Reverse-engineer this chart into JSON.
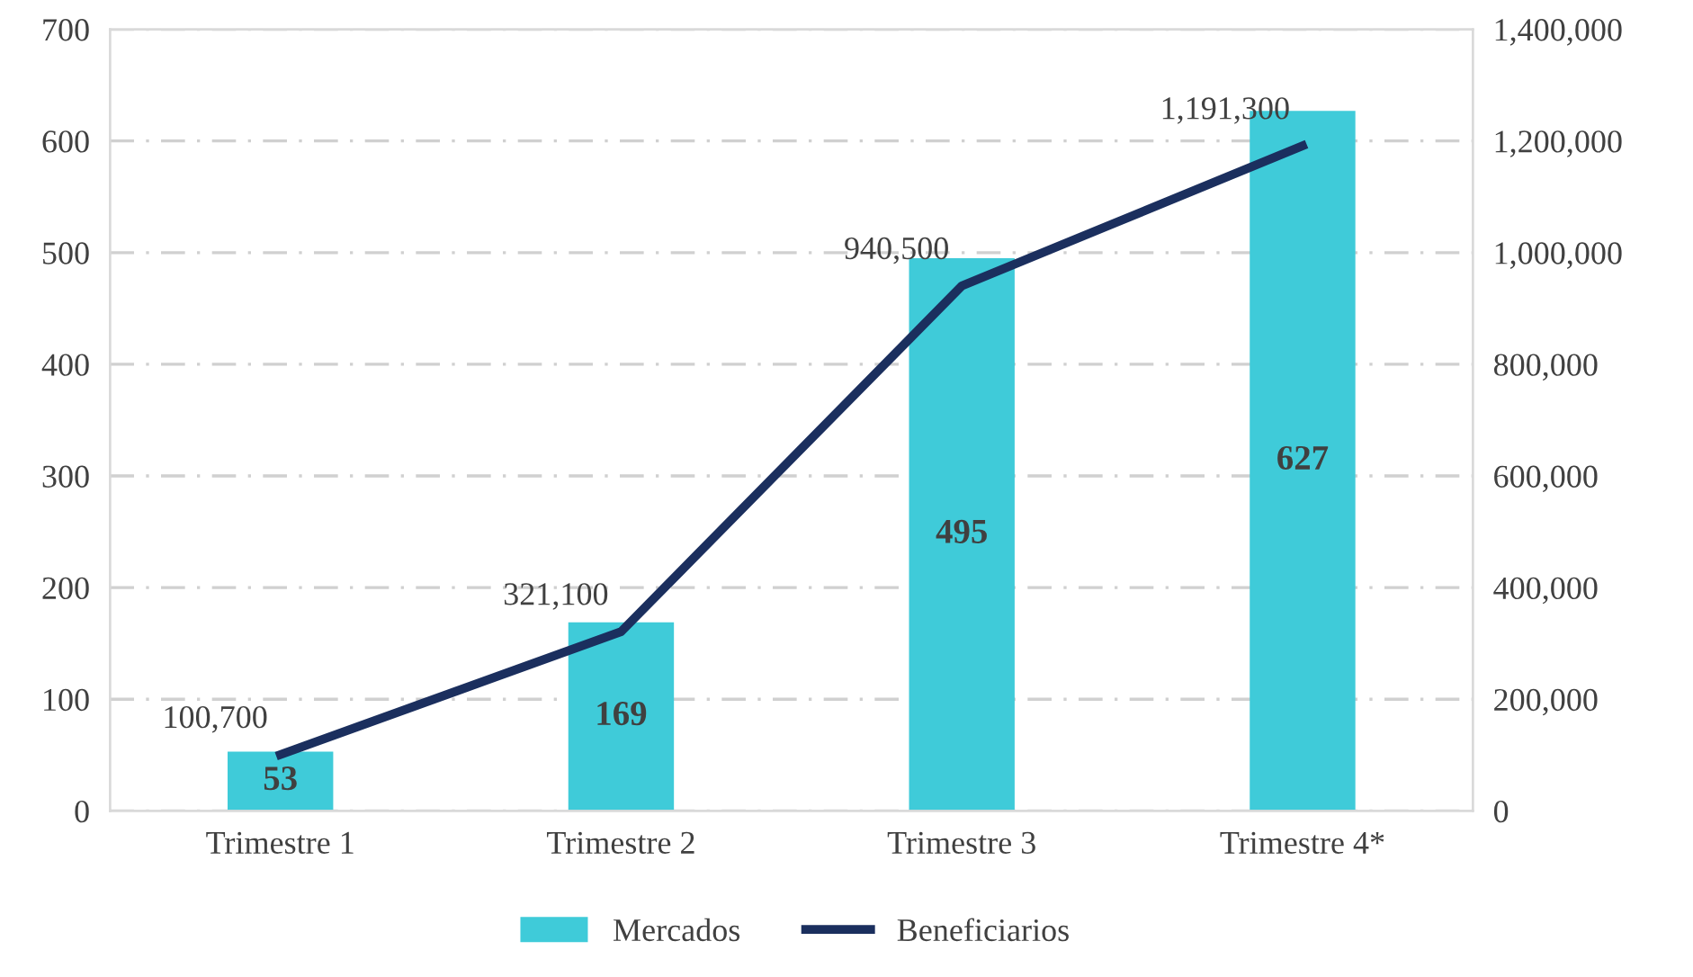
{
  "chart_data": {
    "type": "bar",
    "categories": [
      "Trimestre 1",
      "Trimestre 2",
      "Trimestre 3",
      "Trimestre 4*"
    ],
    "series": [
      {
        "name": "Mercados",
        "color": "#3fcbd9",
        "values": [
          53,
          169,
          495,
          627
        ],
        "value_labels": [
          "53",
          "169",
          "495",
          "627"
        ]
      },
      {
        "name": "Beneficiarios",
        "type": "line",
        "axis": "y2",
        "color": "#1b2f5e",
        "values": [
          100700,
          321100,
          940500,
          1191300
        ],
        "value_labels": [
          "100,700",
          "321,100",
          "940,500",
          "1,191,300"
        ]
      }
    ],
    "ylim": [
      0,
      700
    ],
    "yticks": [
      0,
      100,
      200,
      300,
      400,
      500,
      600,
      700
    ],
    "y2lim": [
      0,
      1400000
    ],
    "y2ticks": [
      {
        "value": 0,
        "label": "0"
      },
      {
        "value": 200000,
        "label": "200,000"
      },
      {
        "value": 400000,
        "label": "400,000"
      },
      {
        "value": 600000,
        "label": "600,000"
      },
      {
        "value": 800000,
        "label": "800,000"
      },
      {
        "value": 1000000,
        "label": "1,000,000"
      },
      {
        "value": 1200000,
        "label": "1,200,000"
      },
      {
        "value": 1400000,
        "label": "1,400,000"
      }
    ],
    "grid": "y",
    "legend": "bottom",
    "marker": "none",
    "line_style": "solid"
  }
}
